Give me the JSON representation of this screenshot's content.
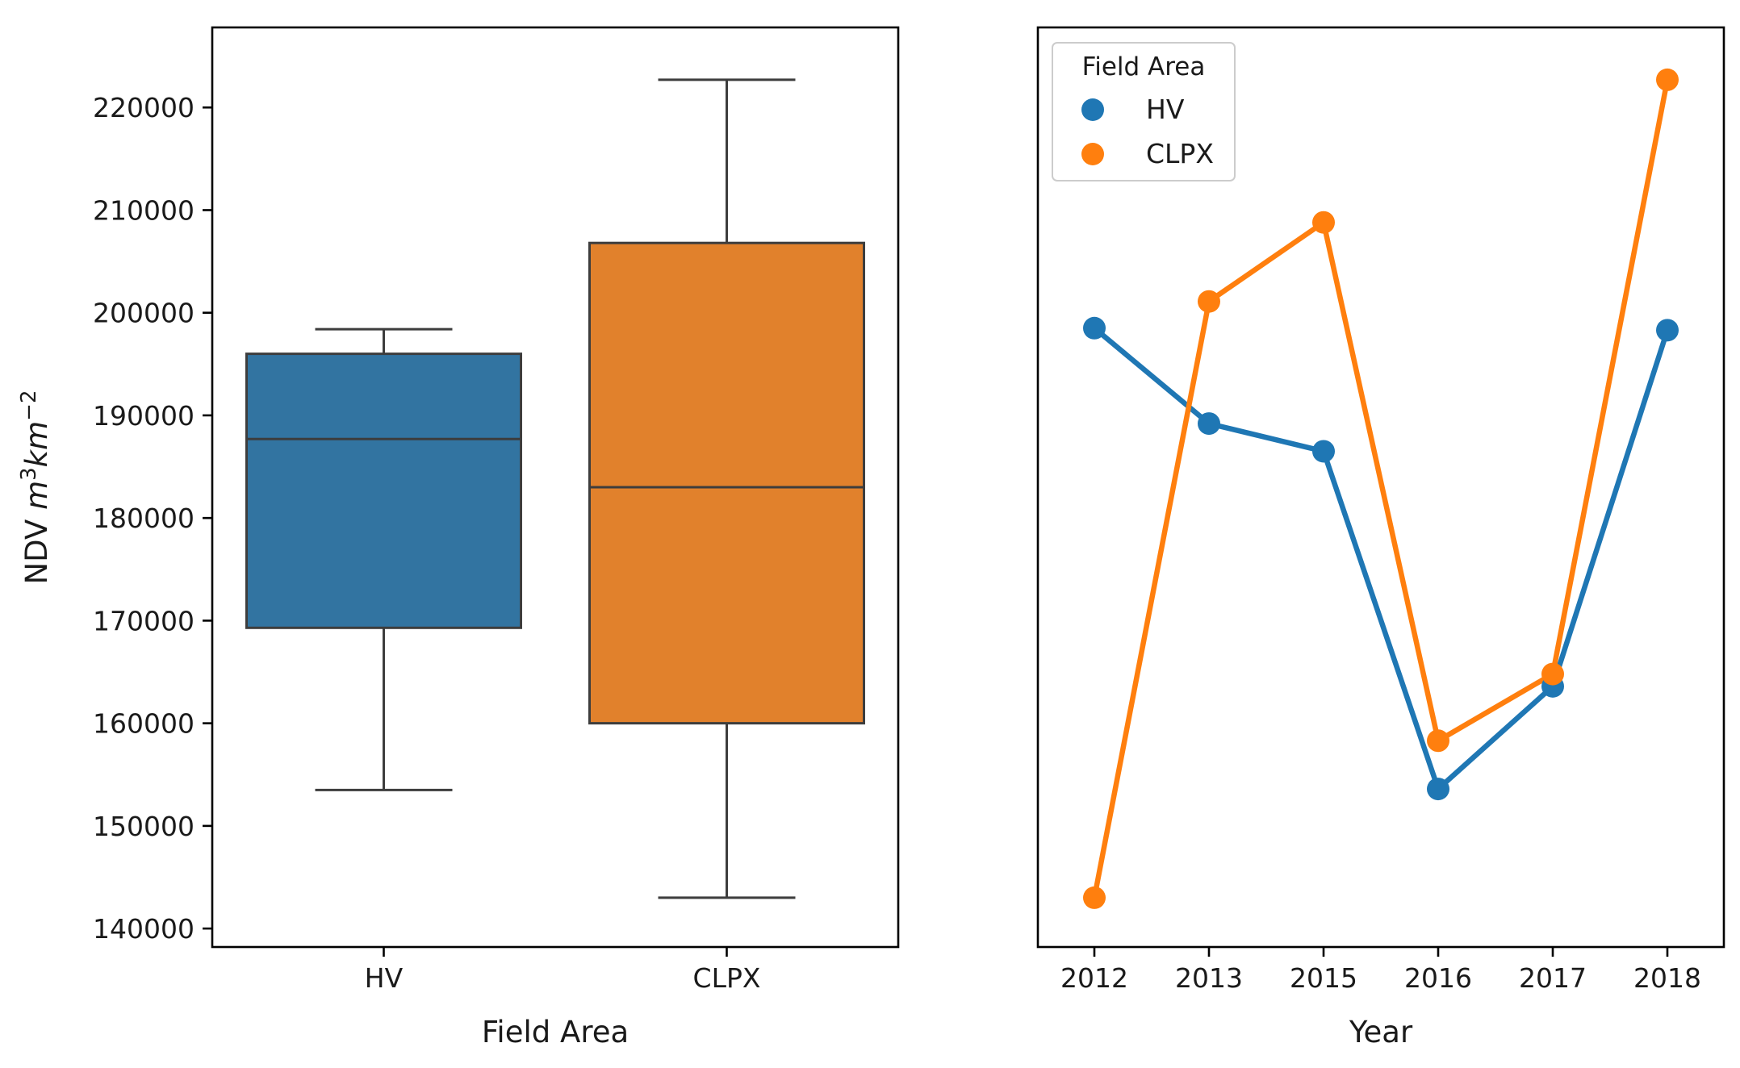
{
  "chart_data": [
    {
      "type": "box",
      "xlabel": "Field Area",
      "ylabel": "NDV m³km⁻²",
      "ylabel_parts": {
        "prefix": "NDV ",
        "m": "m",
        "m_exp": "3",
        "km": "km",
        "km_exp": "−2"
      },
      "categories": [
        "HV",
        "CLPX"
      ],
      "boxes": [
        {
          "name": "HV",
          "color": "#3274a1",
          "min": 153500,
          "q1": 169300,
          "median": 187700,
          "q3": 196000,
          "max": 198400
        },
        {
          "name": "CLPX",
          "color": "#e1812c",
          "min": 143000,
          "q1": 160000,
          "median": 183000,
          "q3": 206800,
          "max": 222700
        }
      ],
      "ylim": [
        138200,
        227800
      ],
      "yticks": [
        140000,
        150000,
        160000,
        170000,
        180000,
        190000,
        200000,
        210000,
        220000
      ],
      "ytick_labels": [
        "140000",
        "150000",
        "160000",
        "170000",
        "180000",
        "190000",
        "200000",
        "210000",
        "220000"
      ],
      "grid": false
    },
    {
      "type": "line",
      "xlabel": "Year",
      "ylabel": "",
      "categories": [
        "2012",
        "2013",
        "2015",
        "2016",
        "2017",
        "2018"
      ],
      "series": [
        {
          "name": "HV",
          "color": "#1f77b4",
          "values": [
            198500,
            189200,
            186500,
            153600,
            163600,
            198300
          ]
        },
        {
          "name": "CLPX",
          "color": "#ff7f0e",
          "values": [
            143000,
            201100,
            208800,
            158300,
            164800,
            222700
          ]
        }
      ],
      "ylim": [
        138200,
        227800
      ],
      "legend": {
        "title": "Field Area",
        "position": "top-left"
      },
      "grid": false
    }
  ]
}
